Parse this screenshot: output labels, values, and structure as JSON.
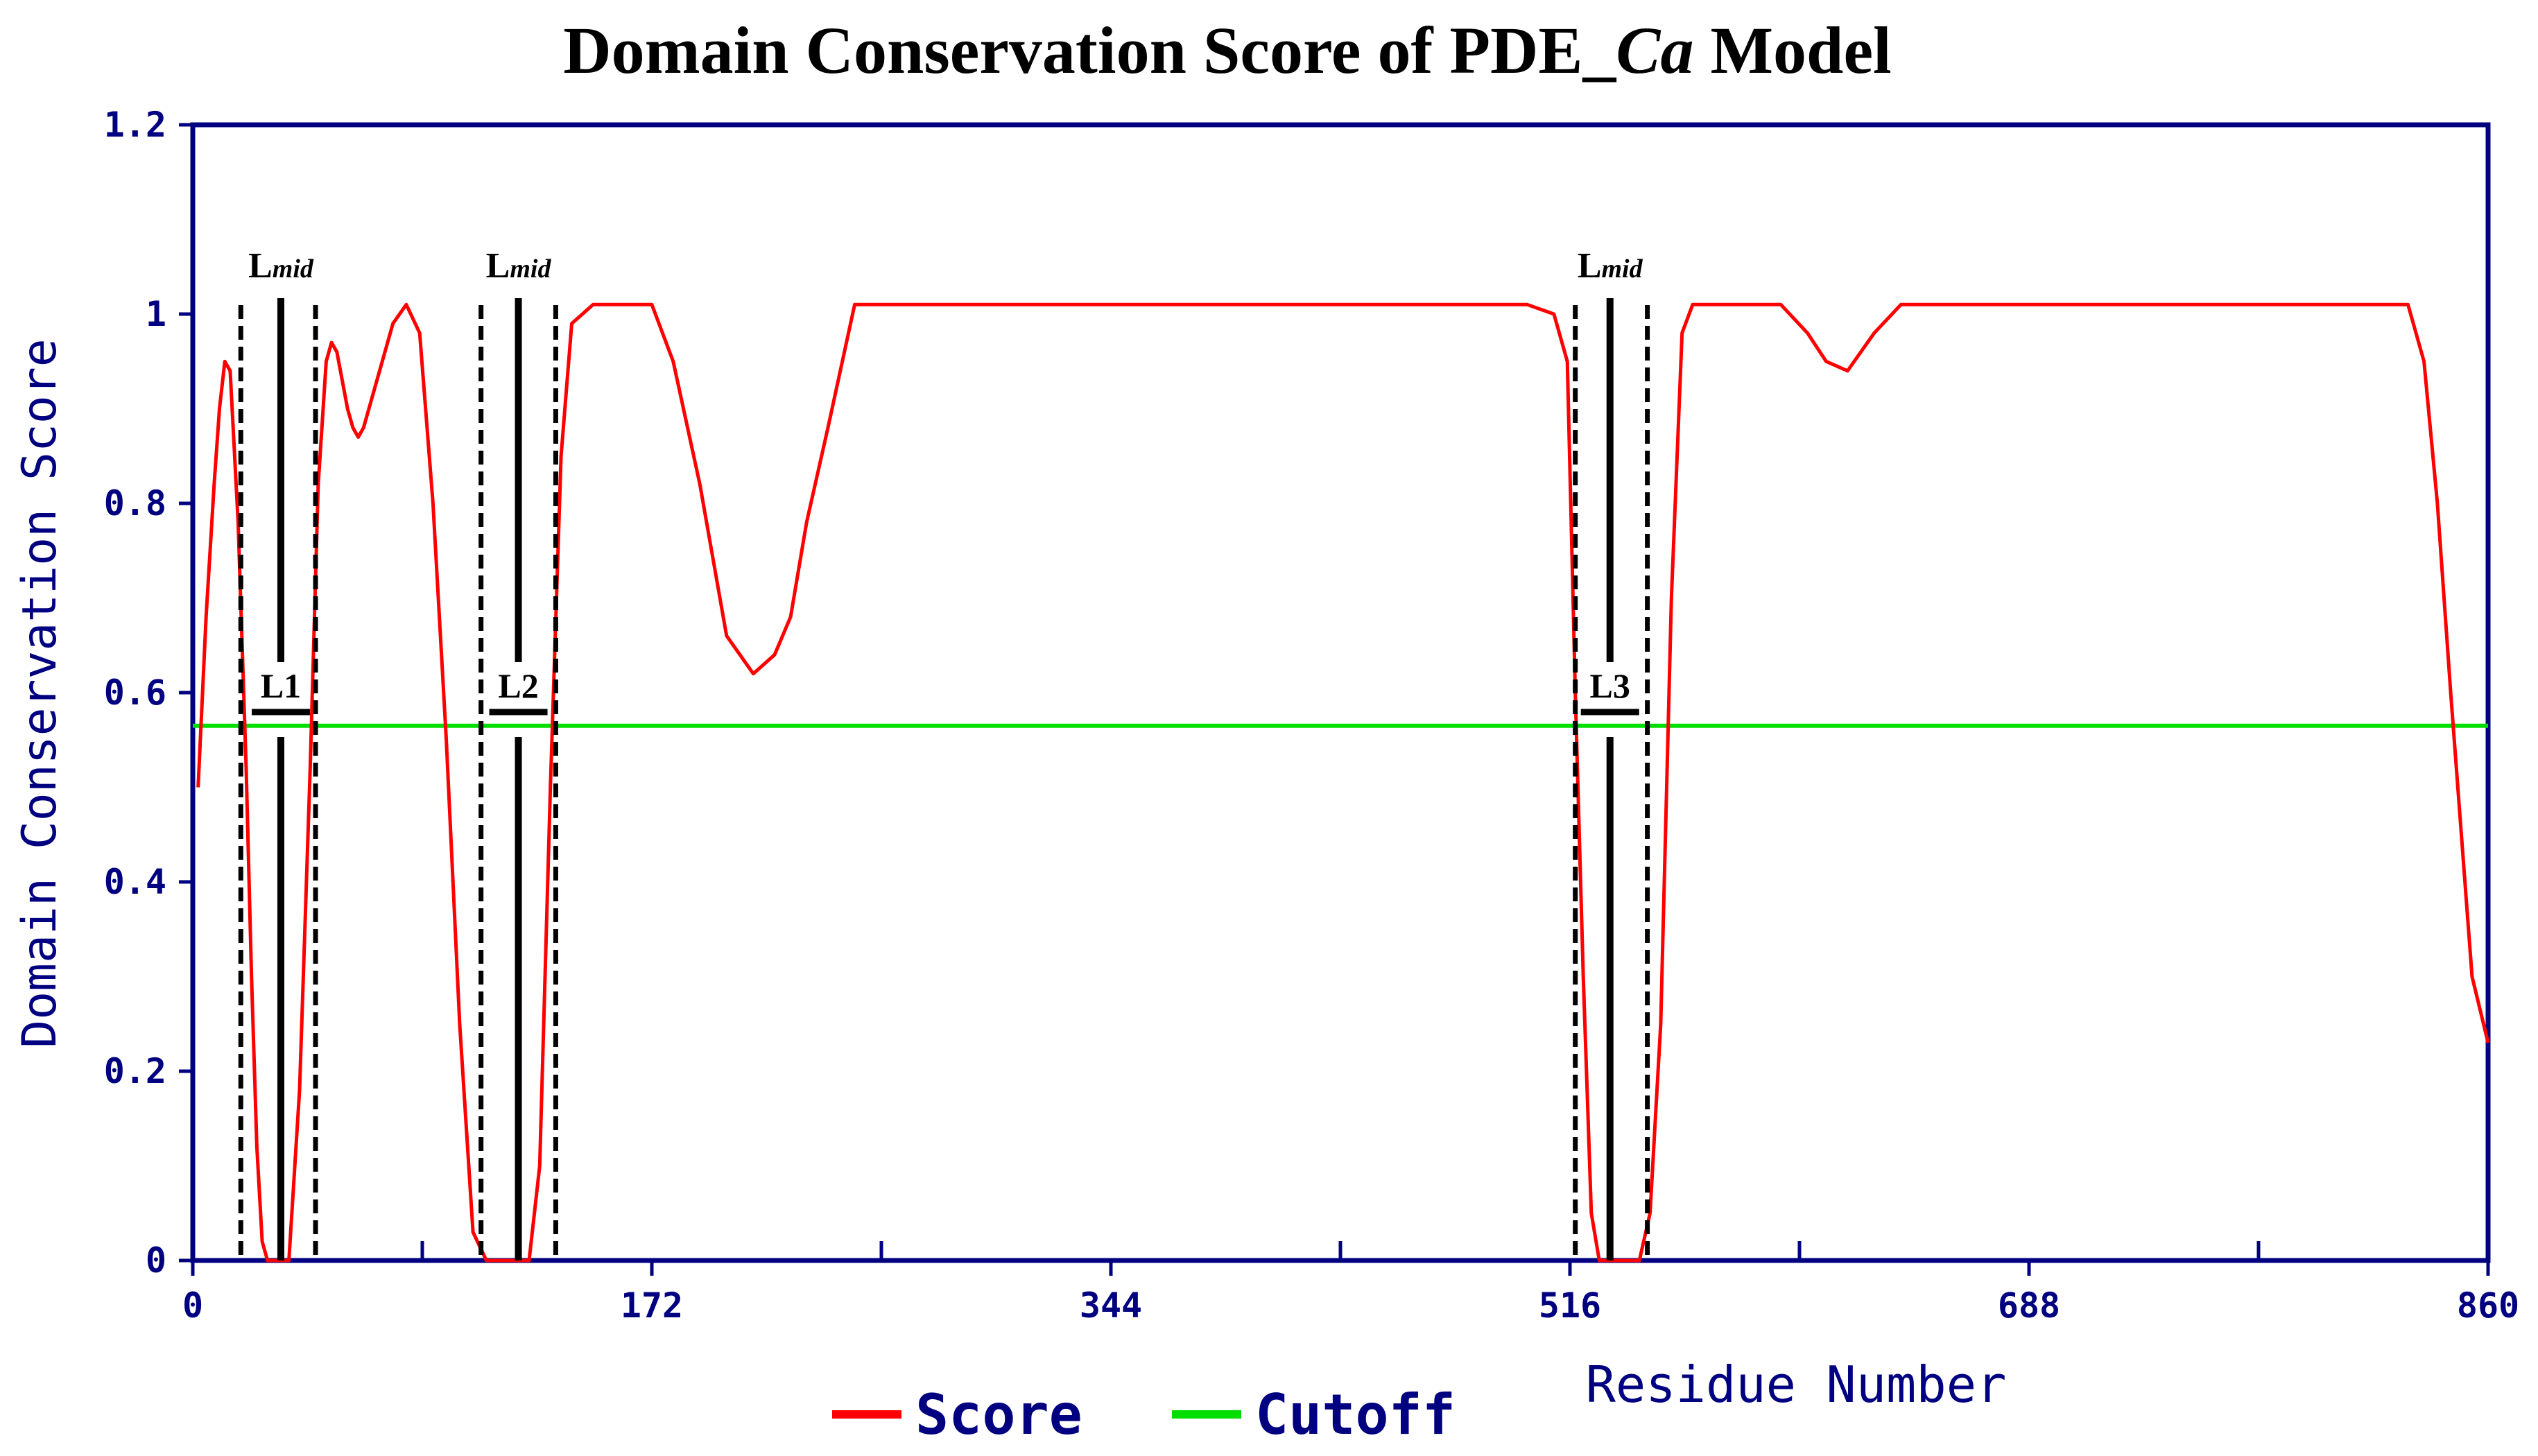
{
  "chart_data": {
    "type": "line",
    "title_main": "Domain Conservation Score of PDE_",
    "title_italic": "Ca",
    "title_end": " Model",
    "xlabel": "Residue Number",
    "ylabel": "Domain Conservation Score",
    "xlim": [
      0,
      860
    ],
    "ylim": [
      0,
      1.2
    ],
    "xticks": [
      0,
      172,
      344,
      516,
      688,
      860
    ],
    "xtick_labels": [
      "0",
      "172",
      "344",
      "516",
      "688",
      "860"
    ],
    "xticks_minor": [
      86,
      258,
      430,
      602,
      774
    ],
    "yticks": [
      0,
      0.2,
      0.4,
      0.6,
      0.8,
      1,
      1.2
    ],
    "ytick_labels": [
      "0",
      "0.2",
      "0.4",
      "0.6",
      "0.8",
      "1",
      "1.2"
    ],
    "grid": false,
    "legend_position": "bottom-left",
    "colors": {
      "axis": "#000080",
      "score": "#ff0000",
      "cutoff": "#00dd00",
      "annotation": "#000000"
    },
    "series": [
      {
        "name": "Score",
        "color": "#ff0000",
        "x": [
          2,
          5,
          8,
          10,
          12,
          14,
          17,
          20,
          22,
          24,
          26,
          28,
          30,
          32,
          34,
          36,
          40,
          44,
          47,
          50,
          52,
          54,
          56,
          58,
          60,
          62,
          64,
          66,
          70,
          75,
          80,
          85,
          90,
          95,
          100,
          105,
          110,
          114,
          118,
          122,
          126,
          130,
          134,
          138,
          142,
          146,
          150,
          154,
          158,
          164,
          172,
          180,
          190,
          200,
          210,
          218,
          224,
          230,
          238,
          248,
          258,
          268,
          300,
          344,
          400,
          450,
          480,
          500,
          510,
          515,
          518,
          521,
          524,
          527,
          530,
          534,
          538,
          542,
          546,
          550,
          554,
          558,
          562,
          568,
          580,
          595,
          605,
          612,
          620,
          630,
          640,
          700,
          760,
          810,
          830,
          836,
          841,
          846,
          850,
          854,
          860
        ],
        "y": [
          0.5,
          0.68,
          0.82,
          0.9,
          0.95,
          0.94,
          0.78,
          0.52,
          0.3,
          0.12,
          0.02,
          0.0,
          0.0,
          0.0,
          0.0,
          0.0,
          0.18,
          0.52,
          0.82,
          0.95,
          0.97,
          0.96,
          0.93,
          0.9,
          0.88,
          0.87,
          0.88,
          0.9,
          0.94,
          0.99,
          1.01,
          0.98,
          0.8,
          0.55,
          0.25,
          0.03,
          0.0,
          0.0,
          0.0,
          0.0,
          0.0,
          0.1,
          0.5,
          0.85,
          0.99,
          1.0,
          1.01,
          1.01,
          1.01,
          1.01,
          1.01,
          0.95,
          0.82,
          0.66,
          0.62,
          0.64,
          0.68,
          0.78,
          0.88,
          1.01,
          1.01,
          1.01,
          1.01,
          1.01,
          1.01,
          1.01,
          1.01,
          1.01,
          1.0,
          0.95,
          0.6,
          0.3,
          0.05,
          0.0,
          0.0,
          0.0,
          0.0,
          0.0,
          0.05,
          0.25,
          0.7,
          0.98,
          1.01,
          1.01,
          1.01,
          1.01,
          0.98,
          0.95,
          0.94,
          0.98,
          1.01,
          1.01,
          1.01,
          1.01,
          1.01,
          0.95,
          0.8,
          0.6,
          0.45,
          0.3,
          0.23
        ]
      },
      {
        "name": "Cutoff",
        "color": "#00dd00",
        "x": [
          0,
          860
        ],
        "y": [
          0.565,
          0.565
        ]
      }
    ],
    "annotations": [
      {
        "label": "L1",
        "mid_label": "L",
        "mid_sub": "mid",
        "x_left": 18,
        "x_mid": 33,
        "x_right": 46
      },
      {
        "label": "L2",
        "mid_label": "L",
        "mid_sub": "mid",
        "x_left": 108,
        "x_mid": 122,
        "x_right": 136
      },
      {
        "label": "L3",
        "mid_label": "L",
        "mid_sub": "mid",
        "x_left": 518,
        "x_mid": 531,
        "x_right": 545
      }
    ]
  }
}
